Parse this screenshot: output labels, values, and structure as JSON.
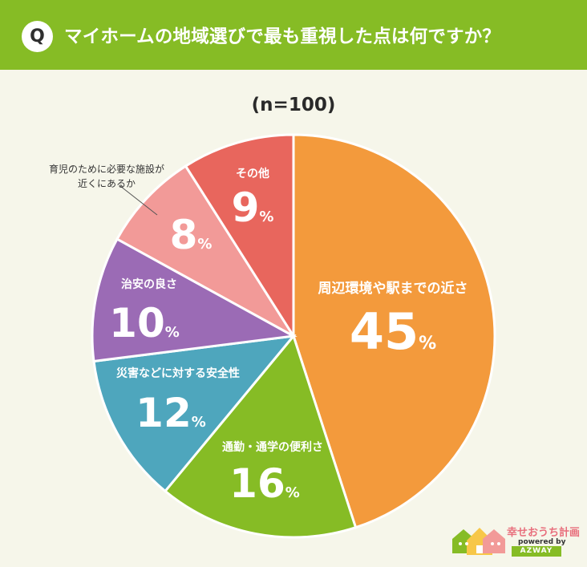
{
  "header": {
    "badge": "Q",
    "question": "マイホームの地域選びで最も重視した点は何ですか？"
  },
  "sample_size": "(n=100)",
  "outside_label_line1": "育児のために必要な施設が",
  "outside_label_line2": "近くにあるか",
  "logo": {
    "name": "幸せおうち計画",
    "powered": "powered by",
    "brand": "AZWAY"
  },
  "chart_data": {
    "type": "pie",
    "unit": "%",
    "slices": [
      {
        "label": "周辺環境や駅までの近さ",
        "value": 45,
        "color": "#f39a3c"
      },
      {
        "label": "通勤・通学の便利さ",
        "value": 16,
        "color": "#86bc25"
      },
      {
        "label": "災害などに対する安全性",
        "value": 12,
        "color": "#4ea6bd"
      },
      {
        "label": "治安の良さ",
        "value": 10,
        "color": "#9b6bb5"
      },
      {
        "label": "育児のために必要な施設が近くにあるか",
        "value": 8,
        "color": "#f29a98"
      },
      {
        "label": "その他",
        "value": 9,
        "color": "#e8665d"
      }
    ]
  }
}
